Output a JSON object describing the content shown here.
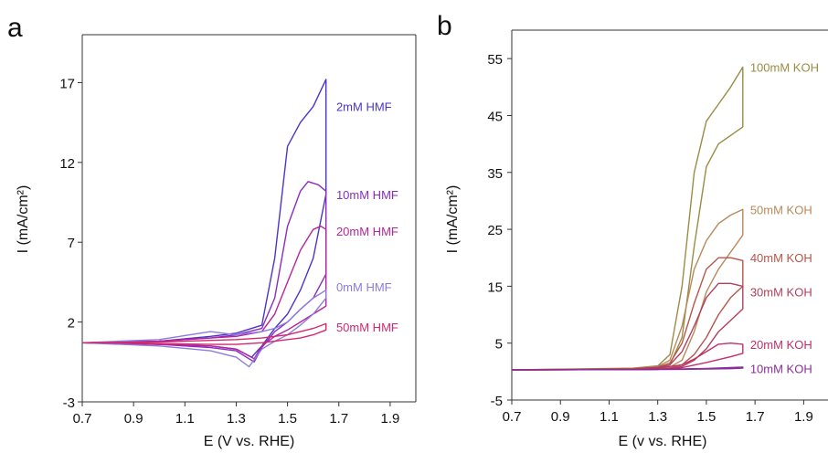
{
  "chart_data": [
    {
      "type": "line",
      "panel_label": "a",
      "xlabel": "E (V vs. RHE)",
      "ylabel": "I (mA/cm²)",
      "xlim": [
        0.7,
        2.0
      ],
      "ylim": [
        -3,
        20
      ],
      "xticks": [
        0.7,
        0.9,
        1.1,
        1.3,
        1.5,
        1.7,
        1.9
      ],
      "yticks": [
        -3,
        2,
        7,
        12,
        17
      ],
      "grid": false,
      "series": [
        {
          "name": "2mM HMF",
          "color": "#4a35c8",
          "label_at": [
            1.69,
            15.5
          ],
          "x": [
            0.7,
            1.0,
            1.2,
            1.3,
            1.4,
            1.45,
            1.5,
            1.55,
            1.6,
            1.65,
            1.65,
            1.6,
            1.55,
            1.5,
            1.45,
            1.4,
            1.36,
            1.3,
            1.2,
            1.0,
            0.7
          ],
          "y": [
            0.7,
            0.8,
            1.1,
            1.3,
            1.8,
            6,
            13,
            14.5,
            15.5,
            17.2,
            10,
            6,
            4,
            2.5,
            1.6,
            0.5,
            -0.2,
            0.3,
            0.5,
            0.6,
            0.7
          ]
        },
        {
          "name": "10mM HMF",
          "color": "#8a2cc0",
          "label_at": [
            1.69,
            10.0
          ],
          "x": [
            0.7,
            1.0,
            1.2,
            1.3,
            1.4,
            1.45,
            1.5,
            1.55,
            1.58,
            1.62,
            1.65,
            1.65,
            1.6,
            1.55,
            1.5,
            1.45,
            1.4,
            1.37,
            1.3,
            1.2,
            1.0,
            0.7
          ],
          "y": [
            0.7,
            0.8,
            1.0,
            1.2,
            1.6,
            3.5,
            8,
            10.2,
            10.8,
            10.6,
            10.2,
            5,
            3.5,
            2.8,
            2.0,
            1.4,
            0.4,
            -0.5,
            0.2,
            0.4,
            0.6,
            0.7
          ]
        },
        {
          "name": "20mM HMF",
          "color": "#b5259a",
          "label_at": [
            1.69,
            7.7
          ],
          "x": [
            0.7,
            1.0,
            1.2,
            1.3,
            1.4,
            1.45,
            1.5,
            1.55,
            1.6,
            1.63,
            1.65,
            1.65,
            1.6,
            1.55,
            1.5,
            1.45,
            1.4,
            1.37,
            1.3,
            1.2,
            1.0,
            0.7
          ],
          "y": [
            0.7,
            0.8,
            1.0,
            1.1,
            1.4,
            2.5,
            4.5,
            6.5,
            7.8,
            8.0,
            7.8,
            3,
            2.5,
            2.0,
            1.5,
            1.1,
            0.5,
            -0.3,
            0.3,
            0.5,
            0.6,
            0.7
          ]
        },
        {
          "name": "0mM HMF",
          "color": "#8a7de0",
          "label_at": [
            1.69,
            4.2
          ],
          "x": [
            0.7,
            1.0,
            1.2,
            1.3,
            1.4,
            1.45,
            1.5,
            1.55,
            1.6,
            1.65,
            1.65,
            1.6,
            1.55,
            1.5,
            1.45,
            1.4,
            1.35,
            1.3,
            1.2,
            1.0,
            0.7
          ],
          "y": [
            0.7,
            0.9,
            1.4,
            1.2,
            1.4,
            1.6,
            2.0,
            2.8,
            3.5,
            4.0,
            3.5,
            2.5,
            1.8,
            1.2,
            0.8,
            0.3,
            -0.8,
            -0.2,
            0.2,
            0.5,
            0.7
          ]
        },
        {
          "name": "50mM HMF",
          "color": "#d4286e",
          "label_at": [
            1.69,
            1.7
          ],
          "x": [
            0.7,
            1.0,
            1.2,
            1.3,
            1.4,
            1.45,
            1.5,
            1.55,
            1.6,
            1.65,
            1.65,
            1.6,
            1.55,
            1.5,
            1.45,
            1.4,
            1.35,
            1.3,
            1.2,
            1.0,
            0.7
          ],
          "y": [
            0.7,
            0.75,
            0.85,
            0.9,
            1.0,
            1.1,
            1.2,
            1.4,
            1.6,
            1.9,
            1.5,
            1.2,
            1.0,
            0.9,
            0.8,
            0.7,
            0.65,
            0.6,
            0.6,
            0.65,
            0.7
          ]
        }
      ]
    },
    {
      "type": "line",
      "panel_label": "b",
      "xlabel": "E (v vs. RHE)",
      "ylabel": "I (mA/cm²)",
      "xlim": [
        0.7,
        2.0
      ],
      "ylim": [
        -5,
        60
      ],
      "xticks": [
        0.7,
        0.9,
        1.1,
        1.3,
        1.5,
        1.7,
        1.9
      ],
      "yticks": [
        -5,
        5,
        15,
        25,
        35,
        45,
        55
      ],
      "grid": false,
      "series": [
        {
          "name": "100mM KOH",
          "color": "#9a8c45",
          "label_at": [
            1.68,
            53.5
          ],
          "x": [
            0.7,
            1.2,
            1.3,
            1.35,
            1.4,
            1.45,
            1.5,
            1.55,
            1.6,
            1.65,
            1.65,
            1.6,
            1.55,
            1.5,
            1.45,
            1.4,
            1.35,
            1.3,
            1.2,
            0.7
          ],
          "y": [
            0.3,
            0.6,
            1.0,
            3,
            15,
            35,
            44,
            47,
            50,
            53.5,
            43,
            41.5,
            40,
            36,
            22,
            6,
            1.2,
            0.6,
            0.4,
            0.3
          ]
        },
        {
          "name": "50mM KOH",
          "color": "#b8895a",
          "label_at": [
            1.68,
            28.5
          ],
          "x": [
            0.7,
            1.2,
            1.3,
            1.35,
            1.4,
            1.45,
            1.5,
            1.55,
            1.6,
            1.65,
            1.65,
            1.6,
            1.55,
            1.5,
            1.45,
            1.4,
            1.35,
            1.3,
            1.2,
            0.7
          ],
          "y": [
            0.3,
            0.5,
            0.9,
            2,
            8,
            18,
            23,
            26,
            27.5,
            28.5,
            24,
            21,
            18,
            14,
            7,
            2,
            0.8,
            0.5,
            0.4,
            0.3
          ]
        },
        {
          "name": "40mM KOH",
          "color": "#b8554a",
          "label_at": [
            1.68,
            20.0
          ],
          "x": [
            0.7,
            1.2,
            1.3,
            1.35,
            1.4,
            1.45,
            1.5,
            1.55,
            1.6,
            1.65,
            1.65,
            1.6,
            1.55,
            1.5,
            1.45,
            1.4,
            1.35,
            1.3,
            1.2,
            0.7
          ],
          "y": [
            0.3,
            0.5,
            0.8,
            1.5,
            5,
            12,
            18,
            20,
            20,
            19.5,
            15,
            13,
            10,
            6,
            3,
            1.2,
            0.6,
            0.4,
            0.35,
            0.3
          ]
        },
        {
          "name": "30mM KOH",
          "color": "#b0405a",
          "label_at": [
            1.68,
            14.0
          ],
          "x": [
            0.7,
            1.2,
            1.3,
            1.35,
            1.4,
            1.45,
            1.5,
            1.55,
            1.6,
            1.65,
            1.65,
            1.6,
            1.55,
            1.5,
            1.45,
            1.4,
            1.35,
            1.3,
            1.2,
            0.7
          ],
          "y": [
            0.3,
            0.45,
            0.7,
            1.2,
            3.5,
            8,
            13,
            15.5,
            15.5,
            15,
            11,
            9,
            7,
            4,
            2,
            0.9,
            0.5,
            0.4,
            0.35,
            0.3
          ]
        },
        {
          "name": "20mM KOH",
          "color": "#c0306a",
          "label_at": [
            1.68,
            4.8
          ],
          "x": [
            0.7,
            1.2,
            1.3,
            1.4,
            1.45,
            1.5,
            1.55,
            1.6,
            1.65,
            1.65,
            1.6,
            1.5,
            1.4,
            1.3,
            1.2,
            0.7
          ],
          "y": [
            0.3,
            0.4,
            0.6,
            1.2,
            2.2,
            3.5,
            4.8,
            5.0,
            4.8,
            3.2,
            2.6,
            1.6,
            0.7,
            0.4,
            0.35,
            0.3
          ]
        },
        {
          "name": "10mM KOH",
          "color": "#8a2c9a",
          "label_at": [
            1.68,
            0.5
          ],
          "x": [
            0.7,
            1.2,
            1.4,
            1.5,
            1.6,
            1.65,
            1.65,
            1.6,
            1.5,
            1.4,
            1.2,
            0.7
          ],
          "y": [
            0.3,
            0.35,
            0.45,
            0.55,
            0.7,
            0.8,
            0.6,
            0.5,
            0.45,
            0.4,
            0.35,
            0.3
          ]
        }
      ]
    }
  ]
}
